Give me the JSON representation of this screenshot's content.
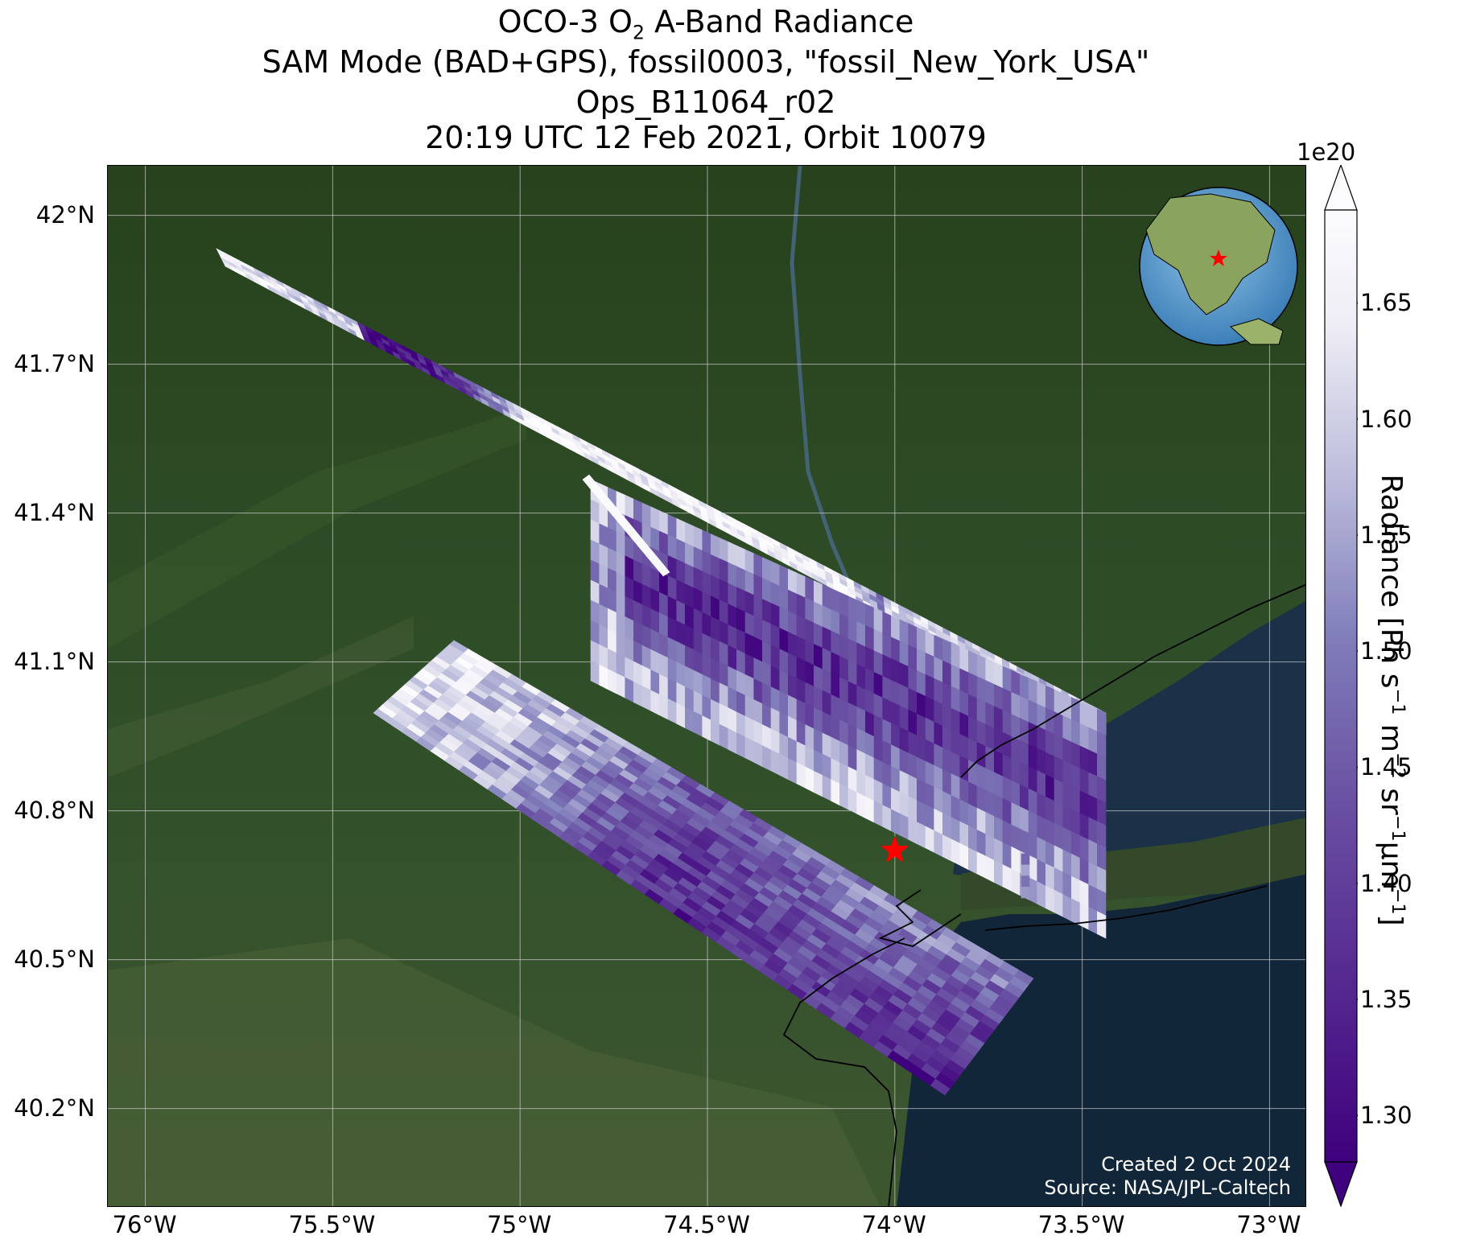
{
  "title": {
    "line1_pre": "OCO-3 O",
    "line1_sub": "2",
    "line1_post": " A-Band Radiance",
    "line2": "SAM Mode (BAD+GPS), fossil0003, \"fossil_New_York_USA\"",
    "line3": "Ops_B11064_r02",
    "line4": "20:19 UTC 12 Feb 2021, Orbit 10079"
  },
  "map": {
    "lat_ticks": [
      "42°N",
      "41.7°N",
      "41.4°N",
      "41.1°N",
      "40.8°N",
      "40.5°N",
      "40.2°N"
    ],
    "lon_ticks": [
      "76°W",
      "75.5°W",
      "75°W",
      "74.5°W",
      "74°W",
      "73.5°W",
      "73°W"
    ],
    "lat_values": [
      42.0,
      41.7,
      41.4,
      41.1,
      40.8,
      40.5,
      40.2
    ],
    "lon_values": [
      -76.0,
      -75.5,
      -75.0,
      -74.5,
      -74.0,
      -73.5,
      -73.0
    ],
    "lon_range": [
      -76.1,
      -72.9
    ],
    "lat_range": [
      40.0,
      42.1
    ],
    "target_marker": {
      "name": "fossil_New_York_USA",
      "lon": -74.0,
      "lat": 40.72,
      "color": "#ff0000"
    },
    "colors": {
      "land": "#2d4a22",
      "water": "#12263a",
      "grid": "#cfcfcf"
    }
  },
  "colorbar": {
    "label_main": "Radiance [Ph s",
    "label_sup1": "−1",
    "label_mid1": " m",
    "label_sup2": "−2",
    "label_mid2": " sr",
    "label_sup3": "−1",
    "label_mid3": "μm",
    "label_sup4": "−1",
    "label_end": "]",
    "exponent": "1e20",
    "ticks": [
      "1.30",
      "1.35",
      "1.40",
      "1.45",
      "1.50",
      "1.55",
      "1.60",
      "1.65"
    ],
    "tick_values": [
      1.3,
      1.35,
      1.4,
      1.45,
      1.5,
      1.55,
      1.6,
      1.65
    ],
    "range": [
      1.28,
      1.69
    ],
    "colormap": "Purples_r",
    "colors": {
      "low": "#3f007d",
      "mid": "#807dba",
      "high": "#fcfbfd"
    }
  },
  "credits": {
    "created": "Created 2 Oct 2024",
    "source": "Source: NASA/JPL-Caltech"
  }
}
